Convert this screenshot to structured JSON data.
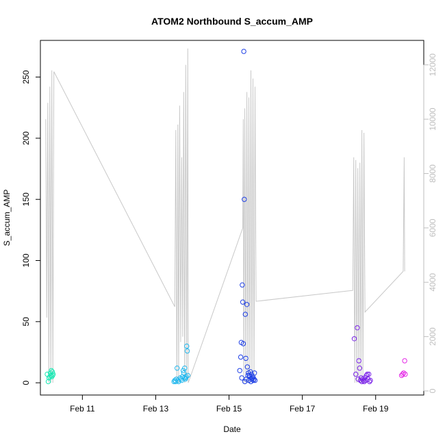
{
  "chart_data": {
    "type": "scatter",
    "title": "ATOM2 Northbound S_accum_AMP",
    "xlabel": "Date",
    "ylabel": "S_accum_AMP",
    "x_is_date": true,
    "xlim": [
      "2024-02-09 20:30",
      "2024-02-20 07:30"
    ],
    "ylim": [
      -10,
      280
    ],
    "y2lim": [
      -150,
      12900
    ],
    "x_ticks": [
      {
        "x": "2024-02-11 00:00",
        "label": "Feb 11"
      },
      {
        "x": "2024-02-13 00:00",
        "label": "Feb 13"
      },
      {
        "x": "2024-02-15 00:00",
        "label": "Feb 15"
      },
      {
        "x": "2024-02-17 00:00",
        "label": "Feb 17"
      },
      {
        "x": "2024-02-19 00:00",
        "label": "Feb 19"
      }
    ],
    "y_ticks": [
      0,
      50,
      100,
      150,
      200,
      250
    ],
    "y2_ticks": [
      0,
      2000,
      4000,
      6000,
      8000,
      10000,
      12000
    ],
    "grid": false,
    "legend": "none",
    "colors": {
      "line": "#c8c8c8",
      "right_axis": "#bebebe"
    },
    "series": [
      {
        "color": "#1ae8b4",
        "points": [
          [
            "2024-02-10 01:00",
            7
          ],
          [
            "2024-02-10 01:40",
            1
          ],
          [
            "2024-02-10 02:10",
            4
          ],
          [
            "2024-02-10 02:40",
            5
          ],
          [
            "2024-02-10 03:00",
            8
          ],
          [
            "2024-02-10 03:20",
            6
          ],
          [
            "2024-02-10 03:40",
            10
          ],
          [
            "2024-02-10 04:00",
            5
          ],
          [
            "2024-02-10 04:20",
            9
          ],
          [
            "2024-02-10 04:30",
            6
          ],
          [
            "2024-02-10 04:50",
            7
          ]
        ]
      },
      {
        "color": "#22b8ee",
        "points": [
          [
            "2024-02-13 12:00",
            1
          ],
          [
            "2024-02-13 12:30",
            2
          ],
          [
            "2024-02-13 13:00",
            1
          ],
          [
            "2024-02-13 13:30",
            3
          ],
          [
            "2024-02-13 14:00",
            12
          ],
          [
            "2024-02-13 14:30",
            2
          ],
          [
            "2024-02-13 15:00",
            1
          ],
          [
            "2024-02-13 16:00",
            4
          ],
          [
            "2024-02-13 16:30",
            3
          ],
          [
            "2024-02-13 17:00",
            2
          ],
          [
            "2024-02-13 17:30",
            5
          ],
          [
            "2024-02-13 18:00",
            10
          ],
          [
            "2024-02-13 18:20",
            8
          ],
          [
            "2024-02-13 18:40",
            4
          ],
          [
            "2024-02-13 19:00",
            12
          ],
          [
            "2024-02-13 19:20",
            3
          ],
          [
            "2024-02-13 19:40",
            4
          ],
          [
            "2024-02-13 20:00",
            5
          ],
          [
            "2024-02-13 20:20",
            30
          ],
          [
            "2024-02-13 20:40",
            26
          ],
          [
            "2024-02-13 21:00",
            6
          ]
        ]
      },
      {
        "color": "#1e3fe6",
        "points": [
          [
            "2024-02-15 09:40",
            271
          ],
          [
            "2024-02-15 10:00",
            150
          ],
          [
            "2024-02-15 08:40",
            80
          ],
          [
            "2024-02-15 09:00",
            66
          ],
          [
            "2024-02-15 11:40",
            64
          ],
          [
            "2024-02-15 10:40",
            56
          ],
          [
            "2024-02-15 08:00",
            33
          ],
          [
            "2024-02-15 09:20",
            32
          ],
          [
            "2024-02-15 07:40",
            21
          ],
          [
            "2024-02-15 11:00",
            20
          ],
          [
            "2024-02-15 07:00",
            10
          ],
          [
            "2024-02-15 12:00",
            13
          ],
          [
            "2024-02-15 12:40",
            8
          ],
          [
            "2024-02-15 13:20",
            6
          ],
          [
            "2024-02-15 14:00",
            9
          ],
          [
            "2024-02-15 14:40",
            7
          ],
          [
            "2024-02-15 15:20",
            4
          ],
          [
            "2024-02-15 16:00",
            2
          ],
          [
            "2024-02-15 08:20",
            4
          ],
          [
            "2024-02-15 10:20",
            1
          ],
          [
            "2024-02-15 11:20",
            3
          ],
          [
            "2024-02-15 13:00",
            2
          ],
          [
            "2024-02-15 13:40",
            5
          ],
          [
            "2024-02-15 14:20",
            1
          ],
          [
            "2024-02-15 15:00",
            3
          ],
          [
            "2024-02-15 15:40",
            5
          ],
          [
            "2024-02-15 16:20",
            3
          ],
          [
            "2024-02-15 17:00",
            2
          ],
          [
            "2024-02-15 12:20",
            6
          ],
          [
            "2024-02-15 16:40",
            8
          ]
        ]
      },
      {
        "color": "#7a22e8",
        "points": [
          [
            "2024-02-18 10:00",
            36
          ],
          [
            "2024-02-18 12:00",
            45
          ],
          [
            "2024-02-18 13:00",
            18
          ],
          [
            "2024-02-18 13:30",
            12
          ],
          [
            "2024-02-18 11:00",
            7
          ],
          [
            "2024-02-18 12:30",
            3
          ],
          [
            "2024-02-18 14:00",
            2
          ],
          [
            "2024-02-18 14:30",
            4
          ],
          [
            "2024-02-18 15:00",
            1
          ],
          [
            "2024-02-18 15:30",
            3
          ],
          [
            "2024-02-18 16:00",
            2
          ],
          [
            "2024-02-18 16:30",
            1
          ],
          [
            "2024-02-18 17:00",
            4
          ],
          [
            "2024-02-18 17:30",
            2
          ],
          [
            "2024-02-18 18:00",
            6
          ],
          [
            "2024-02-18 18:30",
            7
          ],
          [
            "2024-02-18 19:00",
            3
          ],
          [
            "2024-02-18 19:30",
            7
          ],
          [
            "2024-02-18 20:00",
            1
          ],
          [
            "2024-02-18 20:30",
            2
          ]
        ]
      },
      {
        "color": "#e428e6",
        "points": [
          [
            "2024-02-19 17:00",
            6
          ],
          [
            "2024-02-19 17:40",
            7
          ],
          [
            "2024-02-19 18:20",
            8
          ],
          [
            "2024-02-19 19:00",
            18
          ],
          [
            "2024-02-19 19:20",
            7
          ]
        ]
      }
    ],
    "line_series": {
      "color": "#c8c8c8",
      "axis": "right",
      "points": [
        [
          "2024-02-10 00:00",
          10000
        ],
        [
          "2024-02-10 00:40",
          2700
        ],
        [
          "2024-02-10 01:20",
          10600
        ],
        [
          "2024-02-10 02:00",
          300
        ],
        [
          "2024-02-10 02:40",
          11200
        ],
        [
          "2024-02-10 03:20",
          300
        ],
        [
          "2024-02-10 04:00",
          11800
        ],
        [
          "2024-02-10 04:40",
          300
        ],
        [
          "2024-02-10 05:20",
          11750
        ],
        [
          "2024-02-13 12:30",
          3100
        ],
        [
          "2024-02-13 13:10",
          9600
        ],
        [
          "2024-02-13 13:50",
          300
        ],
        [
          "2024-02-13 14:30",
          9800
        ],
        [
          "2024-02-13 15:00",
          300
        ],
        [
          "2024-02-13 15:40",
          10500
        ],
        [
          "2024-02-13 16:20",
          1800
        ],
        [
          "2024-02-13 17:00",
          8600
        ],
        [
          "2024-02-13 17:40",
          2000
        ],
        [
          "2024-02-13 18:20",
          11000
        ],
        [
          "2024-02-13 19:00",
          300
        ],
        [
          "2024-02-13 19:40",
          12000
        ],
        [
          "2024-02-13 20:20",
          500
        ],
        [
          "2024-02-13 21:00",
          12600
        ],
        [
          "2024-02-13 21:20",
          300
        ],
        [
          "2024-02-15 09:00",
          6000
        ],
        [
          "2024-02-15 09:20",
          10000
        ],
        [
          "2024-02-15 09:40",
          300
        ],
        [
          "2024-02-15 10:20",
          10400
        ],
        [
          "2024-02-15 11:00",
          300
        ],
        [
          "2024-02-15 11:40",
          11000
        ],
        [
          "2024-02-15 12:20",
          300
        ],
        [
          "2024-02-15 13:00",
          10800
        ],
        [
          "2024-02-15 13:40",
          300
        ],
        [
          "2024-02-15 14:20",
          11800
        ],
        [
          "2024-02-15 15:00",
          300
        ],
        [
          "2024-02-15 15:40",
          11500
        ],
        [
          "2024-02-15 16:20",
          300
        ],
        [
          "2024-02-15 17:00",
          11200
        ],
        [
          "2024-02-15 17:40",
          3300
        ],
        [
          "2024-02-18 09:00",
          3700
        ],
        [
          "2024-02-18 09:40",
          8600
        ],
        [
          "2024-02-18 10:20",
          300
        ],
        [
          "2024-02-18 11:00",
          8500
        ],
        [
          "2024-02-18 11:40",
          300
        ],
        [
          "2024-02-18 12:20",
          8200
        ],
        [
          "2024-02-18 13:00",
          300
        ],
        [
          "2024-02-18 13:40",
          8400
        ],
        [
          "2024-02-18 14:20",
          300
        ],
        [
          "2024-02-18 15:00",
          9600
        ],
        [
          "2024-02-18 15:40",
          300
        ],
        [
          "2024-02-18 16:20",
          9500
        ],
        [
          "2024-02-18 17:00",
          2900
        ],
        [
          "2024-02-19 18:00",
          4400
        ],
        [
          "2024-02-19 18:40",
          8600
        ],
        [
          "2024-02-19 19:00",
          4400
        ]
      ]
    }
  }
}
